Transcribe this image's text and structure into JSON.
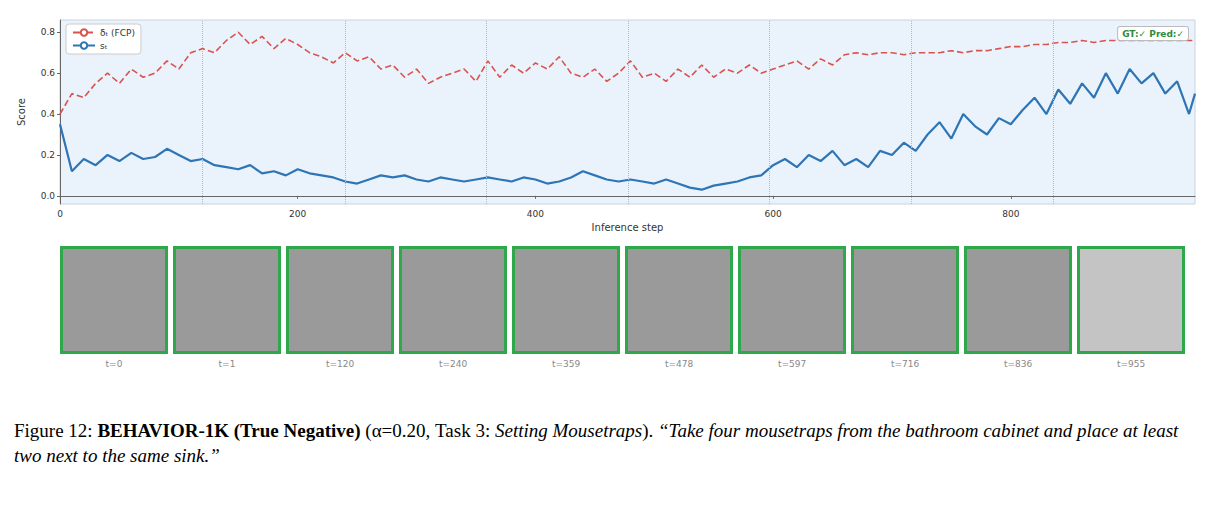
{
  "chart_data": {
    "type": "line",
    "x_label": "Inference step",
    "y_label": "Score",
    "badge": "GT:✓ Pred:✓",
    "x": [
      0,
      10,
      20,
      30,
      40,
      50,
      60,
      70,
      80,
      90,
      100,
      110,
      120,
      130,
      140,
      150,
      160,
      170,
      180,
      190,
      200,
      210,
      220,
      230,
      240,
      250,
      260,
      270,
      280,
      290,
      300,
      310,
      320,
      330,
      340,
      350,
      360,
      370,
      380,
      390,
      400,
      410,
      420,
      430,
      440,
      450,
      460,
      470,
      480,
      490,
      500,
      510,
      520,
      530,
      540,
      550,
      560,
      570,
      580,
      590,
      600,
      610,
      620,
      630,
      640,
      650,
      660,
      670,
      680,
      690,
      700,
      710,
      720,
      730,
      740,
      750,
      760,
      770,
      780,
      790,
      800,
      810,
      820,
      830,
      840,
      850,
      860,
      870,
      880,
      890,
      900,
      910,
      920,
      930,
      940,
      950,
      955
    ],
    "series": [
      {
        "name": "δₜ (FCP)",
        "color": "#d9534f",
        "line_style": "dashed",
        "values": [
          0.4,
          0.5,
          0.48,
          0.55,
          0.6,
          0.55,
          0.62,
          0.58,
          0.6,
          0.66,
          0.62,
          0.7,
          0.72,
          0.7,
          0.76,
          0.8,
          0.74,
          0.78,
          0.72,
          0.77,
          0.74,
          0.7,
          0.68,
          0.65,
          0.7,
          0.66,
          0.68,
          0.62,
          0.64,
          0.58,
          0.62,
          0.55,
          0.58,
          0.6,
          0.62,
          0.56,
          0.66,
          0.58,
          0.64,
          0.6,
          0.65,
          0.62,
          0.68,
          0.6,
          0.58,
          0.62,
          0.56,
          0.6,
          0.66,
          0.58,
          0.6,
          0.56,
          0.62,
          0.58,
          0.64,
          0.58,
          0.62,
          0.6,
          0.64,
          0.6,
          0.62,
          0.64,
          0.66,
          0.62,
          0.67,
          0.64,
          0.69,
          0.7,
          0.69,
          0.7,
          0.7,
          0.69,
          0.7,
          0.7,
          0.7,
          0.71,
          0.7,
          0.71,
          0.71,
          0.72,
          0.73,
          0.73,
          0.74,
          0.74,
          0.75,
          0.75,
          0.76,
          0.75,
          0.76,
          0.76,
          0.76,
          0.76,
          0.76,
          0.76,
          0.76,
          0.76,
          0.76
        ]
      },
      {
        "name": "sₜ",
        "color": "#2e75b6",
        "line_style": "solid",
        "values": [
          0.35,
          0.12,
          0.18,
          0.15,
          0.2,
          0.17,
          0.21,
          0.18,
          0.19,
          0.23,
          0.2,
          0.17,
          0.18,
          0.15,
          0.14,
          0.13,
          0.15,
          0.11,
          0.12,
          0.1,
          0.13,
          0.11,
          0.1,
          0.09,
          0.07,
          0.06,
          0.08,
          0.1,
          0.09,
          0.1,
          0.08,
          0.07,
          0.09,
          0.08,
          0.07,
          0.08,
          0.09,
          0.08,
          0.07,
          0.09,
          0.08,
          0.06,
          0.07,
          0.09,
          0.12,
          0.1,
          0.08,
          0.07,
          0.08,
          0.07,
          0.06,
          0.08,
          0.06,
          0.04,
          0.03,
          0.05,
          0.06,
          0.07,
          0.09,
          0.1,
          0.15,
          0.18,
          0.14,
          0.2,
          0.17,
          0.22,
          0.15,
          0.18,
          0.14,
          0.22,
          0.2,
          0.26,
          0.22,
          0.3,
          0.36,
          0.28,
          0.4,
          0.34,
          0.3,
          0.38,
          0.35,
          0.42,
          0.48,
          0.4,
          0.52,
          0.45,
          0.55,
          0.48,
          0.6,
          0.5,
          0.62,
          0.55,
          0.6,
          0.5,
          0.56,
          0.4,
          0.5
        ]
      }
    ],
    "vlines": [
      120,
      240,
      359,
      478,
      597,
      716,
      836
    ],
    "xlim": [
      0,
      955
    ],
    "xticks": [
      0,
      200,
      400,
      600,
      800
    ],
    "ylim": [
      -0.04,
      0.86
    ],
    "yticks": [
      {
        "value": 0,
        "label": "0.0"
      },
      {
        "value": 0.2,
        "label": "0.2"
      },
      {
        "value": 0.4,
        "label": "0.4"
      },
      {
        "value": 0.6,
        "label": "0.6"
      },
      {
        "value": 0.8,
        "label": "0.8"
      }
    ],
    "grid": false,
    "legend": "top-left"
  },
  "frames": {
    "labels": [
      "t=0",
      "t=1",
      "t=120",
      "t=240",
      "t=359",
      "t=478",
      "t=597",
      "t=716",
      "t=836",
      "t=955"
    ],
    "color": "#2ea84a"
  },
  "caption": {
    "label": "Figure 12:",
    "title": "BEHAVIOR-1K (True Negative)",
    "params": "(α=0.20, Task 3:",
    "task": "Setting Mousetraps",
    "params_end": ").",
    "quote": "“Take four mousetraps from the bathroom cabinet and place at least two next to the same sink.”"
  }
}
